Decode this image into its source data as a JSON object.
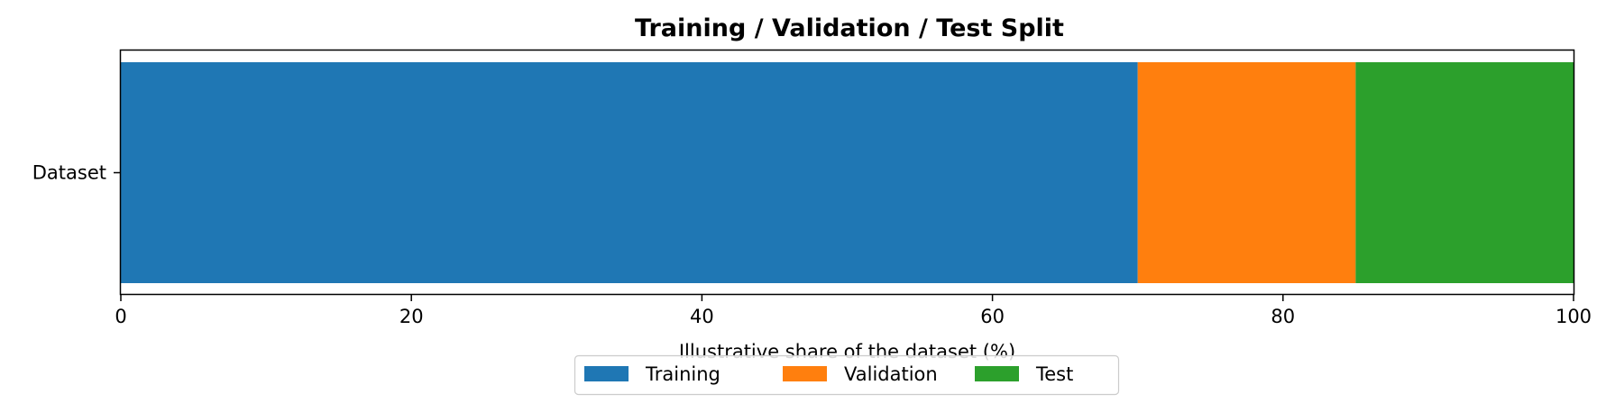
{
  "chart_data": {
    "type": "bar",
    "orientation": "horizontal",
    "stacked": true,
    "title": "Training / Validation / Test Split",
    "xlabel": "Illustrative share of the dataset (%)",
    "ylabel": "",
    "categories": [
      "Dataset"
    ],
    "xlim": [
      0,
      100
    ],
    "x_ticks": [
      0,
      20,
      40,
      60,
      80,
      100
    ],
    "series": [
      {
        "name": "Training",
        "values": [
          70
        ],
        "color": "#1f77b4"
      },
      {
        "name": "Validation",
        "values": [
          15
        ],
        "color": "#ff7f0e"
      },
      {
        "name": "Test",
        "values": [
          15
        ],
        "color": "#2ca02c"
      }
    ],
    "grid": false,
    "legend": {
      "position": "bottom-center",
      "columns": 3
    }
  }
}
